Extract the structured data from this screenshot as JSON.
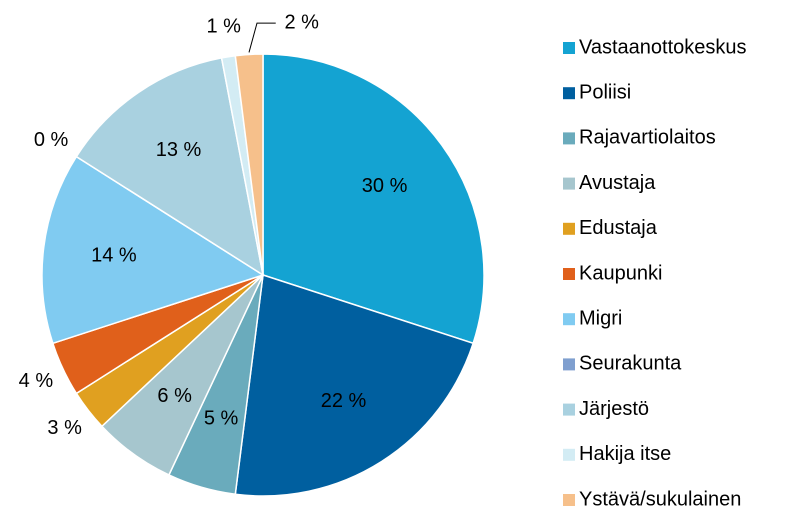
{
  "chart_data": {
    "type": "pie",
    "categories": [
      "Vastaanottokeskus",
      "Poliisi",
      "Rajavartiolaitos",
      "Avustaja",
      "Edustaja",
      "Kaupunki",
      "Migri",
      "Seurakunta",
      "Järjestö",
      "Hakija itse",
      "Ystävä/sukulainen"
    ],
    "values": [
      30,
      22,
      5,
      6,
      3,
      4,
      14,
      0,
      13,
      1,
      2
    ],
    "value_labels": [
      "30 %",
      "22 %",
      "5 %",
      "6 %",
      "3 %",
      "4 %",
      "14 %",
      "0 %",
      "13 %",
      "1 %",
      "2 %"
    ],
    "colors": [
      "#14a3d2",
      "#005f9f",
      "#6aabbc",
      "#a6c6ce",
      "#e0a020",
      "#e0601b",
      "#80cbf1",
      "#7f9fcf",
      "#a9d1e0",
      "#d3ecf4",
      "#f6c08b"
    ],
    "legend": "right"
  }
}
